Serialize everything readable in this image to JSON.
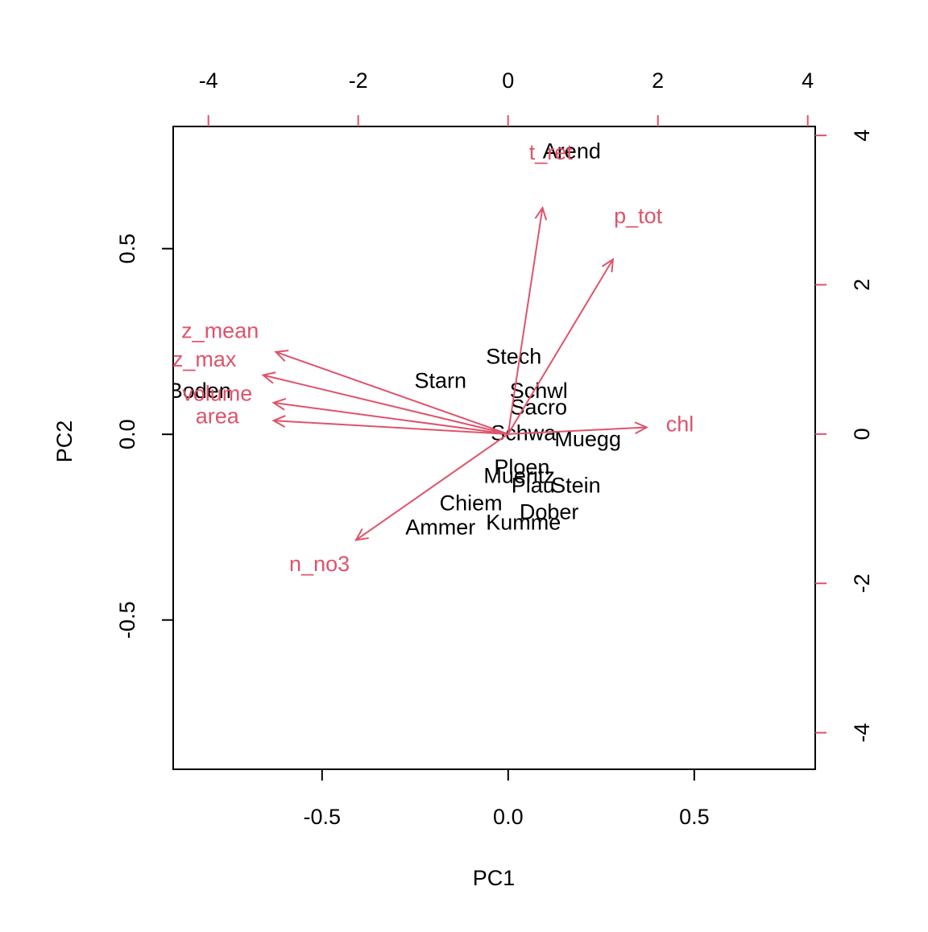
{
  "chart_data": {
    "type": "biplot",
    "x_label": "PC1",
    "y_label": "PC2",
    "xlim": [
      -0.9,
      0.825
    ],
    "ylim": [
      -0.902,
      0.829
    ],
    "xticks": [
      -0.5,
      {
        "value": 0,
        "label": "0.0"
      },
      0.5
    ],
    "yticks": [
      -0.5,
      {
        "value": 0,
        "label": "0.0"
      },
      0.5
    ],
    "x2lim": [
      -4.47,
      4.1
    ],
    "y2lim": [
      -4.49,
      4.12
    ],
    "x2ticks": [
      -4,
      -2,
      0,
      2,
      4
    ],
    "y2ticks": [
      -4,
      -2,
      0,
      2,
      4
    ],
    "points": {
      "color": "#000000",
      "labels": [
        "Arend",
        "Stech",
        "Starn",
        "Schwl",
        "Sacro",
        "Boden",
        "Schwa",
        "Muegg",
        "Ploen",
        "Mueritz",
        "Plau",
        "Stein",
        "Chiem",
        "Dober",
        "Ammer",
        "Kumme"
      ],
      "x": [
        0.171,
        0.015,
        -0.182,
        0.082,
        0.082,
        -0.829,
        0.041,
        0.214,
        0.037,
        0.03,
        0.067,
        0.182,
        -0.1,
        0.11,
        -0.182,
        0.041
      ],
      "y": [
        0.759,
        0.206,
        0.141,
        0.113,
        0.069,
        0.113,
        0.0,
        -0.017,
        -0.093,
        -0.115,
        -0.141,
        -0.141,
        -0.189,
        -0.213,
        -0.254,
        -0.241
      ]
    },
    "loadings": {
      "color": "#DF536B",
      "labels": [
        "t_ret",
        "p_tot",
        "z_mean",
        "z_max",
        "volume",
        "area",
        "chl",
        "n_no3"
      ],
      "x": [
        0.46,
        1.4,
        -3.1,
        -3.27,
        -3.13,
        -3.13,
        1.85,
        -2.03
      ],
      "y": [
        3.03,
        2.34,
        1.1,
        0.79,
        0.42,
        0.18,
        0.09,
        -1.42
      ]
    }
  }
}
